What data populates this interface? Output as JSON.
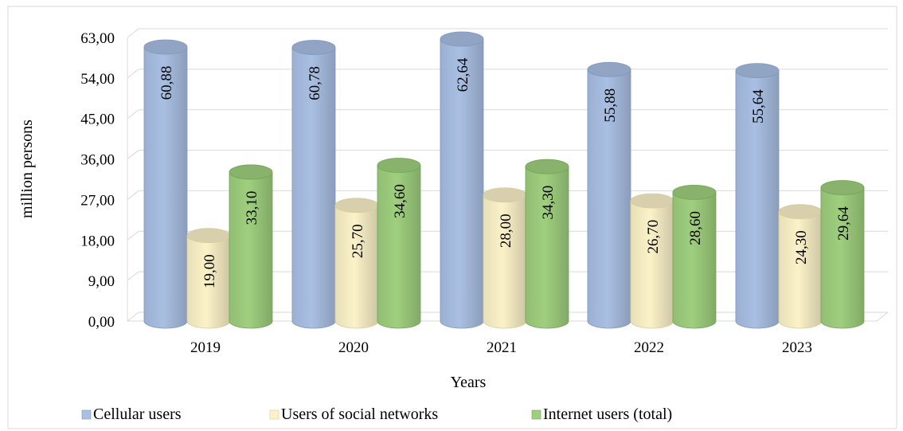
{
  "chart_data": {
    "type": "bar",
    "style": "3d-cylinder",
    "categories": [
      "2019",
      "2020",
      "2021",
      "2022",
      "2023"
    ],
    "series": [
      {
        "name": "Cellular users",
        "values": [
          60.88,
          60.78,
          62.64,
          55.88,
          55.64
        ],
        "labels": [
          "60,88",
          "60,78",
          "62,64",
          "55,88",
          "55,64"
        ],
        "color": "#a9bfe3",
        "edge": "#7d96c2"
      },
      {
        "name": "Users of social networks",
        "values": [
          19.0,
          25.7,
          28.0,
          26.7,
          24.3
        ],
        "labels": [
          "19,00",
          "25,70",
          "28,00",
          "26,70",
          "24,30"
        ],
        "color": "#fbf2c8",
        "edge": "#d8cc9a"
      },
      {
        "name": "Internet users (total)",
        "values": [
          33.1,
          34.6,
          34.3,
          28.6,
          29.64
        ],
        "labels": [
          "33,10",
          "34,60",
          "34,30",
          "28,60",
          "29,64"
        ],
        "color": "#9fcf7e",
        "edge": "#6ea553"
      }
    ],
    "yticks": [
      "0,00",
      "9,00",
      "18,00",
      "27,00",
      "36,00",
      "45,00",
      "54,00",
      "63,00"
    ],
    "ylim": [
      0,
      63
    ],
    "xlabel": "Years",
    "ylabel": "million  persons",
    "grid": true,
    "legend": "bottom"
  }
}
